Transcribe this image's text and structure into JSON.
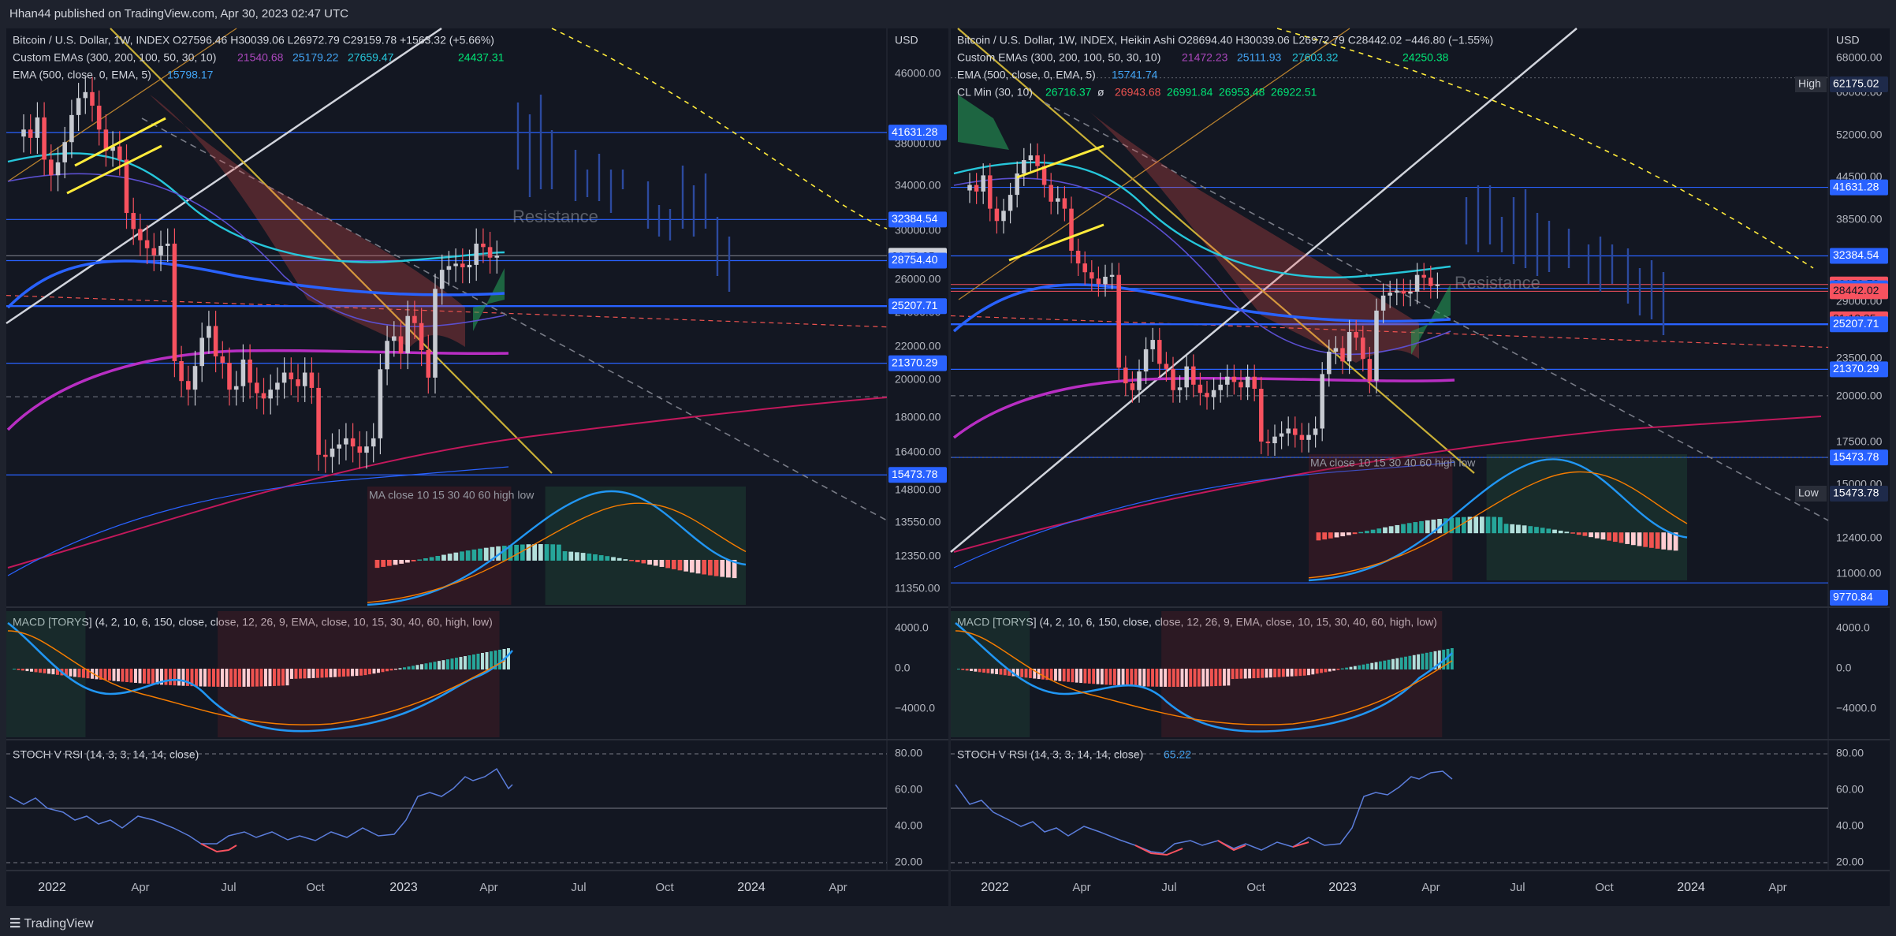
{
  "header": {
    "published": "Hhan44 published on TradingView.com, Apr 30, 2023 02:47 UTC"
  },
  "footer": {
    "brand": "TradingView"
  },
  "colors": {
    "bg": "#131722",
    "frame": "#1e222d",
    "grid": "#2a2e39",
    "up": "#b2b5be",
    "down": "#f7525f",
    "blue_line": "#2962ff",
    "teal": "#26c6da",
    "magenta": "#b82ec3",
    "hline": "#2962ff",
    "yellow": "#ffeb3b",
    "hist_up": "#26a69a",
    "hist_down": "#ef5350"
  },
  "chart_data": [
    {
      "type": "candlestick",
      "legend": {
        "main": "Bitcoin / U.S. Dollar, 1W, INDEX",
        "ohlc": "O27596.46  H30039.06  L26972.79  C29159.78  +1563.32 (+5.66%)",
        "ema_label": "Custom EMAs (300, 200, 100, 50, 30, 10)",
        "ema_values": [
          "21540.68",
          "25179.22",
          "27659.47",
          "",
          "24437.31"
        ],
        "ema2": "EMA (500, close, 0, EMA, 5)",
        "ema2_value": "15798.17"
      },
      "currency": "USD",
      "price_ticks": [
        "46000.00",
        "38000.00",
        "34000.00",
        "30000.00",
        "26000.00",
        "24000.00",
        "22000.00",
        "20000.00",
        "18000.00",
        "16400.00",
        "14800.00",
        "13550.00",
        "12350.00",
        "11350.00"
      ],
      "price_levels": [
        {
          "label": "41631.28",
          "value": 41631.28,
          "style": "blue"
        },
        {
          "label": "32384.54",
          "value": 32384.54,
          "style": "blue"
        },
        {
          "label": "29159.78",
          "value": 29159.78,
          "style": "grey"
        },
        {
          "label": "21:12:35",
          "value": null,
          "style": "grey-sub"
        },
        {
          "label": "28754.40",
          "value": 28754.4,
          "style": "blue"
        },
        {
          "label": "25207.71",
          "value": 25207.71,
          "style": "blue"
        },
        {
          "label": "21370.29",
          "value": 21370.29,
          "style": "blue"
        },
        {
          "label": "15473.78",
          "value": 15473.78,
          "style": "blue"
        }
      ],
      "annotations": [
        "Resistance",
        "MA close 10 15 30 40 60 high low"
      ],
      "x_ticks": [
        "2022",
        "Apr",
        "Jul",
        "Oct",
        "2023",
        "Apr",
        "Jul",
        "Oct",
        "2024",
        "Apr"
      ],
      "macd_label": "MACD [TORYS] (4, 2, 10, 6, 150, close, close, 12, 26, 9, EMA, close, 10, 15, 30, 40, 60, high, low)",
      "macd_ticks": [
        "4000.0",
        "0.0",
        "−4000.0"
      ],
      "stoch_label": "STOCH V RSI (14, 3, 3, 14, 14, close)",
      "stoch_value": "",
      "stoch_ticks": [
        "80.00",
        "60.00",
        "40.00",
        "20.00"
      ]
    },
    {
      "type": "candlestick",
      "legend": {
        "main": "Bitcoin / U.S. Dollar, 1W, INDEX, Heikin Ashi",
        "ohlc": "O28694.40  H30039.06  L26972.79  C28442.02  −446.80 (−1.55%)",
        "ema_label": "Custom EMAs (300, 200, 100, 50, 30, 10)",
        "ema_values": [
          "21472.23",
          "25111.93",
          "27603.32",
          "",
          "24250.38"
        ],
        "ema2": "EMA (500, close, 0, EMA, 5)",
        "ema2_value": "15741.74",
        "cl": "CL Min (30, 10)",
        "cl_values": [
          "26716.37",
          "ø",
          "26943.68",
          "26991.84",
          "26953.48",
          "26922.51"
        ]
      },
      "currency": "USD",
      "price_ticks": [
        "68000.00",
        "60000.00",
        "52000.00",
        "44500.00",
        "38500.00",
        "33500.00",
        "29000.00",
        "23500.00",
        "20000.00",
        "17500.00",
        "15000.00",
        "12400.00",
        "11000.00",
        "10000.00"
      ],
      "price_levels": [
        {
          "label": "62175.02",
          "value": 62175.02,
          "style": "high",
          "tag": "High"
        },
        {
          "label": "41631.28",
          "value": 41631.28,
          "style": "blue"
        },
        {
          "label": "32384.54",
          "value": 32384.54,
          "style": "blue"
        },
        {
          "label": "29159.78",
          "value": 29159.78,
          "style": "red"
        },
        {
          "label": "28754.40",
          "value": 28754.4,
          "style": "blue"
        },
        {
          "label": "28442.02",
          "value": 28442.02,
          "style": "red"
        },
        {
          "label": "21:12:35",
          "value": null,
          "style": "red-sub"
        },
        {
          "label": "25207.71",
          "value": 25207.71,
          "style": "blue"
        },
        {
          "label": "21370.29",
          "value": 21370.29,
          "style": "blue"
        },
        {
          "label": "15473.78",
          "value": 15473.78,
          "style": "blue"
        },
        {
          "label": "15473.78",
          "value": 15473.78,
          "style": "low",
          "tag": "Low"
        },
        {
          "label": "9770.84",
          "value": 9770.84,
          "style": "blue"
        }
      ],
      "annotations": [
        "Resistance",
        "MA close 10 15 30 40 60 high low"
      ],
      "x_ticks": [
        "2022",
        "Apr",
        "Jul",
        "Oct",
        "2023",
        "Apr",
        "Jul",
        "Oct",
        "2024",
        "Apr"
      ],
      "macd_label": "MACD [TORYS] (4, 2, 10, 6, 150, close, close, 12, 26, 9, EMA, close, 10, 15, 30, 40, 60, high, low)",
      "macd_ticks": [
        "4000.0",
        "0.0",
        "−4000.0"
      ],
      "stoch_label": "STOCH V RSI (14, 3, 3, 14, 14, close)",
      "stoch_value": "65.22",
      "stoch_ticks": [
        "80.00",
        "60.00",
        "40.00",
        "20.00"
      ]
    }
  ],
  "series": {
    "close": [
      42000,
      41000,
      43500,
      38500,
      36800,
      38200,
      40500,
      43800,
      46000,
      46800,
      45000,
      42000,
      39500,
      40000,
      38500,
      33000,
      31500,
      30500,
      29800,
      29200,
      30000,
      30200,
      21500,
      20300,
      19800,
      21200,
      23000,
      23800,
      21800,
      21400,
      19800,
      20000,
      21600,
      20200,
      19600,
      19300,
      19800,
      20200,
      20800,
      20400,
      20000,
      20800,
      19900,
      16400,
      16300,
      16700,
      16900,
      17200,
      16800,
      16500,
      16800,
      17200,
      21000,
      22800,
      23100,
      22000,
      24500,
      24000,
      22200,
      20500,
      26500,
      28000,
      28300,
      28500,
      28200,
      28400,
      30200,
      29900,
      29000,
      29159
    ]
  },
  "labels": {
    "ohlc_prefix": "",
    "usd": "USD"
  }
}
